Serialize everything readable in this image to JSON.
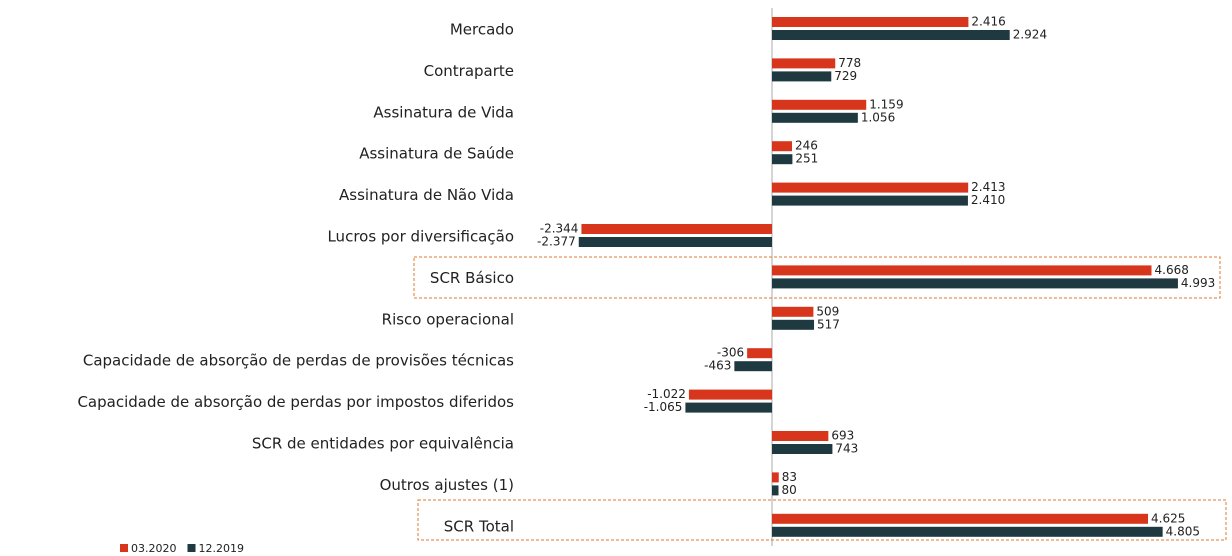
{
  "chart_data": {
    "type": "bar",
    "orientation": "horizontal",
    "categories": [
      "Mercado",
      "Contraparte",
      "Assinatura de Vida",
      "Assinatura de Saúde",
      "Assinatura de Não Vida",
      "Lucros por diversificação",
      "SCR Básico",
      "Risco operacional",
      "Capacidade de absorção de perdas de provisões técnicas",
      "Capacidade de absorção de perdas por impostos diferidos",
      "SCR de entidades por equivalência",
      "Outros ajustes (1)",
      "SCR Total"
    ],
    "series": [
      {
        "name": "03.2020",
        "color": "#d7361c",
        "values": [
          2416,
          778,
          1159,
          246,
          2413,
          -2344,
          4668,
          509,
          -306,
          -1022,
          693,
          83,
          4625
        ],
        "value_labels": [
          "2.416",
          "778",
          "1.159",
          "246",
          "2.413",
          "-2.344",
          "4.668",
          "509",
          "-306",
          "-1.022",
          "693",
          "83",
          "4.625"
        ]
      },
      {
        "name": "12.2019",
        "color": "#1e3940",
        "values": [
          2924,
          729,
          1056,
          251,
          2410,
          -2377,
          4993,
          517,
          -463,
          -1065,
          743,
          80,
          4805
        ],
        "value_labels": [
          "2.924",
          "729",
          "1.056",
          "251",
          "2.410",
          "-2.377",
          "4.993",
          "517",
          "-463",
          "-1.065",
          "743",
          "80",
          "4.805"
        ]
      }
    ]
  }
}
